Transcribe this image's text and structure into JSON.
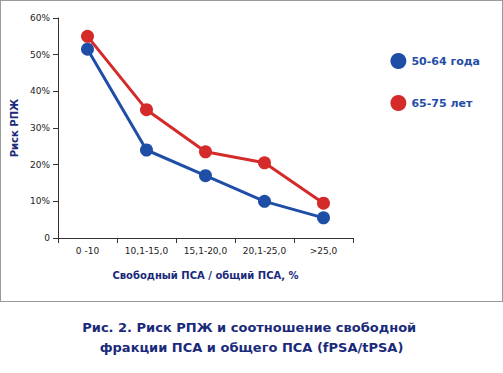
{
  "chart_data": {
    "type": "line",
    "title": "Рис. 2. Риск РПЖ и соотношение свободной фракции ПСА и общего ПСА (fPSA/tPSA)",
    "x_label": "Свободный ПСА / общий ПСА, %",
    "y_label": "Риск РПЖ",
    "categories": [
      "0 -10",
      "10,1-15,0",
      "15,1-20,0",
      "20,1-25,0",
      ">25,0"
    ],
    "series": [
      {
        "name": "50-64 года",
        "color": "#1f4ea6",
        "values": [
          51.5,
          24,
          17,
          10,
          5.5
        ]
      },
      {
        "name": "65-75 лет",
        "color": "#d42a2a",
        "values": [
          55,
          35,
          23.5,
          20.5,
          9.5
        ]
      }
    ],
    "ylim": [
      0,
      60
    ],
    "yticks": [
      0,
      {
        "value": 10,
        "label": "10%"
      },
      {
        "value": 20,
        "label": "20%"
      },
      {
        "value": 30,
        "label": "30%"
      },
      {
        "value": 40,
        "label": "40%"
      },
      {
        "value": 50,
        "label": "50%"
      },
      {
        "value": 60,
        "label": "60%"
      }
    ],
    "grid": false,
    "legend": "right",
    "marker": "circle"
  }
}
